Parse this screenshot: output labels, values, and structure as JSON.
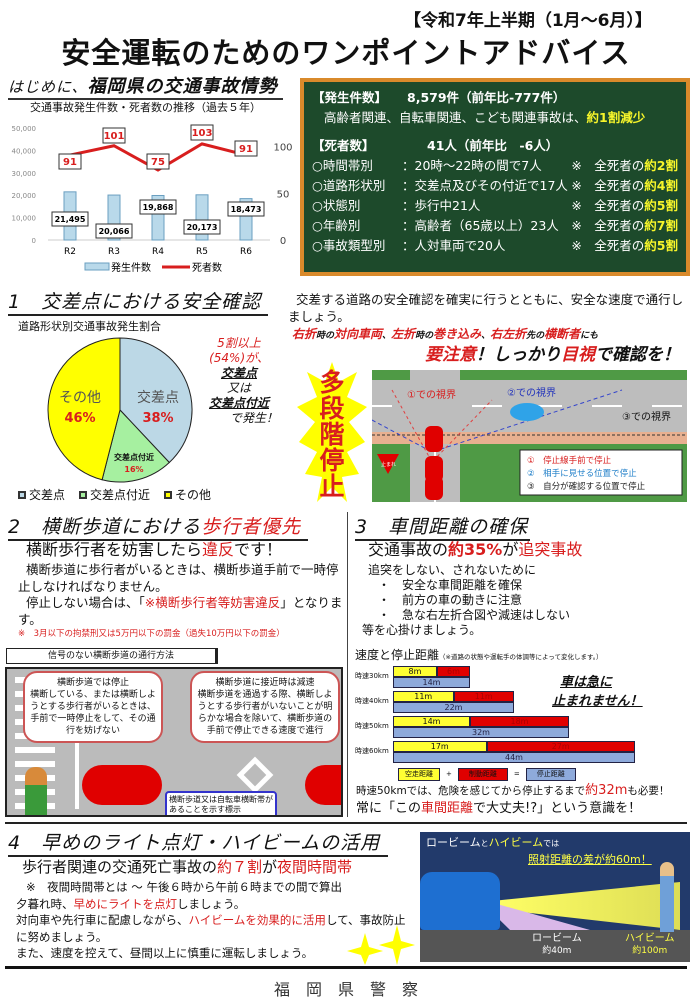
{
  "header": {
    "period": "【令和7年上半期（1月～6月）】",
    "title": "安全運転のためのワンポイントアドバイス"
  },
  "intro": {
    "title_prefix": "はじめに、",
    "title_main": "福岡県の交通事故情勢",
    "board": {
      "accidents_label": "【発生件数】",
      "accidents_value": "8,579件（前年比-777件）",
      "accidents_note": "高齢者関連、自転車関連、こども関連事故は、",
      "accidents_note_hl": "約1割減少",
      "deaths_label": "【死者数】",
      "deaths_value": "41人（前年比　-6人）",
      "rows": [
        {
          "cat": "○時間帯別",
          "detail": "：20時～22時の間で7人",
          "note": "※　全死者の",
          "hl": "約2割"
        },
        {
          "cat": "○道路形状別",
          "detail": "：交差点及びその付近で17人",
          "note": "※　全死者の",
          "hl": "約4割"
        },
        {
          "cat": "○状態別",
          "detail": "：歩行中21人",
          "note": "※　全死者の",
          "hl": "約5割"
        },
        {
          "cat": "○年齢別",
          "detail": "：高齢者（65歳以上）23人",
          "note": "※　全死者の",
          "hl": "約7割"
        },
        {
          "cat": "○事故類型別",
          "detail": "：人対車両で20人",
          "note": "※　全死者の",
          "hl": "約5割"
        }
      ]
    }
  },
  "chart_data": [
    {
      "type": "bar+line",
      "title": "交通事故発生件数・死者数の推移（過去５年）",
      "categories": [
        "R2",
        "R3",
        "R4",
        "R5",
        "R6"
      ],
      "series": [
        {
          "name": "発生件数",
          "type": "bar",
          "axis": "left",
          "values": [
            21495,
            20066,
            19868,
            20173,
            18473
          ],
          "labels": [
            "21,495",
            "20,066",
            "19,868",
            "20,173",
            "18,473"
          ],
          "color": "#b9d9ea"
        },
        {
          "name": "死者数",
          "type": "line",
          "axis": "right",
          "values": [
            91,
            101,
            75,
            103,
            91
          ],
          "color": "#d81e1e"
        }
      ],
      "left_axis": {
        "range": [
          0,
          50000
        ],
        "ticks": [
          "0",
          "10,000",
          "20,000",
          "30,000",
          "40,000",
          "50,000"
        ]
      },
      "right_axis": {
        "range": [
          0,
          120
        ],
        "ticks": [
          "0",
          "50",
          "100"
        ]
      },
      "legend": "bottom",
      "grid": false
    },
    {
      "type": "pie",
      "title": "道路形状別交通事故発生割合",
      "slices": [
        {
          "name": "交差点",
          "value": 38,
          "label": "38%",
          "color": "#bcd8e6"
        },
        {
          "name": "交差点付近",
          "value": 16,
          "label": "16%",
          "color": "#a6f0a0"
        },
        {
          "name": "その他",
          "value": 46,
          "label": "46%",
          "color": "#ffff00"
        }
      ],
      "legend": "bottom"
    },
    {
      "type": "stacked-bar",
      "title": "速度と停止距離",
      "note": "（※道路の状態や運転手の体調等によって変化します。）",
      "categories": [
        "時速30km",
        "時速40km",
        "時速50km",
        "時速60km"
      ],
      "series": [
        {
          "name": "空走距離",
          "values": [
            8,
            11,
            14,
            17
          ],
          "color": "#ffff33"
        },
        {
          "name": "制動距離",
          "values": [
            6,
            11,
            18,
            27
          ],
          "color": "#e00000"
        }
      ],
      "totals": {
        "name": "停止距離",
        "values": [
          14,
          22,
          32,
          44
        ],
        "color": "#8eaadb"
      },
      "unit": "m"
    }
  ],
  "sec1": {
    "title": "1　交差点における安全確認",
    "callout": [
      "5割以上",
      "(54%)が、",
      "交差点",
      "又は",
      "交差点付近",
      "で発生！"
    ],
    "text": "交差する道路の安全確認を確実に行うとともに、安全な速度で通行しましょう。",
    "warn": [
      {
        "t": "右折",
        "r": 1
      },
      {
        "t": "時の",
        "r": 0
      },
      {
        "t": "対向車両",
        "r": 1
      },
      {
        "t": "、",
        "r": 0
      },
      {
        "t": "左折",
        "r": 1
      },
      {
        "t": "時の",
        "r": 0
      },
      {
        "t": "巻き込み",
        "r": 1
      },
      {
        "t": "、",
        "r": 0
      },
      {
        "t": "右左折",
        "r": 1
      },
      {
        "t": "先の",
        "r": 0
      },
      {
        "t": "横断者",
        "r": 1
      },
      {
        "t": "にも",
        "r": 0
      }
    ],
    "emph1": "要注意",
    "emph2": "！しっかり",
    "emph3": "目視",
    "emph4": "で確認を！",
    "burst": "多段階停止",
    "views": [
      "①での視界",
      "②での視界",
      "③での視界"
    ],
    "stop_sign": "止まれ",
    "steps": [
      "①　停止線手前で停止",
      "②　相手に見せる位置で停止",
      "③　自分が確認する位置で停止"
    ]
  },
  "sec2": {
    "title_a": "2　横断歩道における",
    "title_b": "歩行者優先",
    "lead_a": "横断歩行者を妨害したら",
    "lead_b": "違反",
    "lead_c": "です！",
    "p1": "横断歩道に歩行者がいるときは、横断歩道手前で一時停止しなければなりません。",
    "p2a": "停止しない場合は、「",
    "p2b": "※横断歩行者等妨害違反",
    "p2c": "」となります。",
    "penalty": "※　3月以下の拘禁刑又は5万円以下の罰金（過失10万円以下の罰金）",
    "box_title": "信号のない横断歩道の通行方法",
    "bubble1": "横断歩道では停止\n横断している、または横断しようとする歩行者がいるときは、手前で一時停止をして、その通行を妨げない",
    "bubble2": "横断歩道に接近時は減速\n横断歩道を通過する際、横断しようとする歩行者がいないことが明らかな場合を除いて、横断歩道の手前で停止できる速度で進行",
    "bubble3": "横断歩道又は自転車横断帯があることを示す標示"
  },
  "sec3": {
    "title": "3　車間距離の確保",
    "lead_a": "交通事故の",
    "lead_b": "約35%",
    "lead_c": "が",
    "lead_d": "追突事故",
    "intro": "追突をしない、されないために",
    "bullets": [
      "・　安全な車間距離を確保",
      "・　前方の車の動きに注意",
      "・　急な右左折合図や減速はしない"
    ],
    "outro": "等を心掛けましょう。",
    "slogan1": "車は急に",
    "slogan2": "止まれません！",
    "f1a": "時速50kmでは、危険を感じてから停止するまで",
    "f1b": "約32m",
    "f1c": "も必要！",
    "f2a": "常に「この",
    "f2b": "車間距離",
    "f2c": "で大丈夫!?」という意識を！"
  },
  "sec4": {
    "title": "4　早めのライト点灯・ハイビームの活用",
    "lead_a": "歩行者関連の交通死亡事故の",
    "lead_b": "約７割",
    "lead_c": "が",
    "lead_d": "夜間時間帯",
    "note": "※　夜間時間帯とは ～ 午後６時から午前６時までの間で算出",
    "l1a": "夕暮れ時、",
    "l1b": "早めにライトを点灯",
    "l1c": "しましょう。",
    "l2a": "対向車や先行車に配慮しながら、",
    "l2b": "ハイビームを効果的に活用",
    "l2c": "して、事故防止に努めましょう。",
    "l3": "また、速度を控えて、昼間以上に慎重に運転しましょう。",
    "img_t1": "ロービーム",
    "img_t2": "と",
    "img_t3": "ハイビーム",
    "img_t4": "では",
    "img_t5": "照射距離の差が約60m！",
    "low": "ロービーム",
    "low_d": "約40m",
    "high": "ハイビーム",
    "high_d": "約100m"
  },
  "footer": {
    "org": "福　岡　県　警　察"
  }
}
